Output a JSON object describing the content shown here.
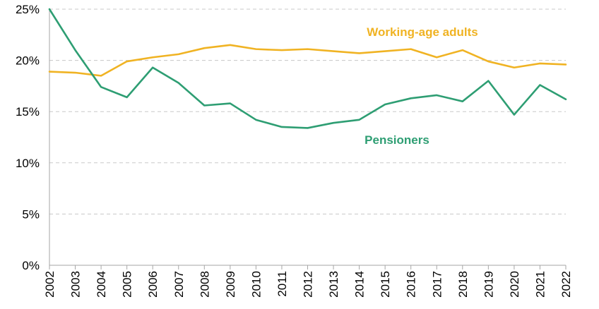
{
  "chart_data": {
    "type": "line",
    "title": "",
    "xlabel": "",
    "ylabel": "",
    "x": [
      "2002",
      "2003",
      "2004",
      "2005",
      "2006",
      "2007",
      "2008",
      "2009",
      "2010",
      "2011",
      "2012",
      "2013",
      "2014",
      "2015",
      "2016",
      "2017",
      "2018",
      "2019",
      "2020",
      "2021",
      "2022"
    ],
    "ylim": [
      0,
      25
    ],
    "yticks": [
      0,
      5,
      10,
      15,
      20,
      25
    ],
    "ytick_labels": [
      "0%",
      "5%",
      "10%",
      "15%",
      "20%",
      "25%"
    ],
    "grid": "horizontal dashed",
    "legend": "none (series labelled directly on chart)",
    "series": [
      {
        "name": "Working-age adults",
        "color": "#F0B323",
        "values": [
          18.9,
          18.8,
          18.5,
          19.9,
          20.3,
          20.6,
          21.2,
          21.5,
          21.1,
          21.0,
          21.1,
          20.9,
          20.7,
          20.9,
          21.1,
          20.3,
          21.0,
          19.9,
          19.3,
          19.7,
          19.6
        ]
      },
      {
        "name": "Pensioners",
        "color": "#2E9E73",
        "values": [
          25.0,
          21.0,
          17.4,
          16.4,
          19.3,
          17.8,
          15.6,
          15.8,
          14.2,
          13.5,
          13.4,
          13.9,
          14.2,
          15.7,
          16.3,
          16.6,
          16.0,
          18.0,
          14.7,
          17.6,
          16.2
        ]
      }
    ]
  }
}
